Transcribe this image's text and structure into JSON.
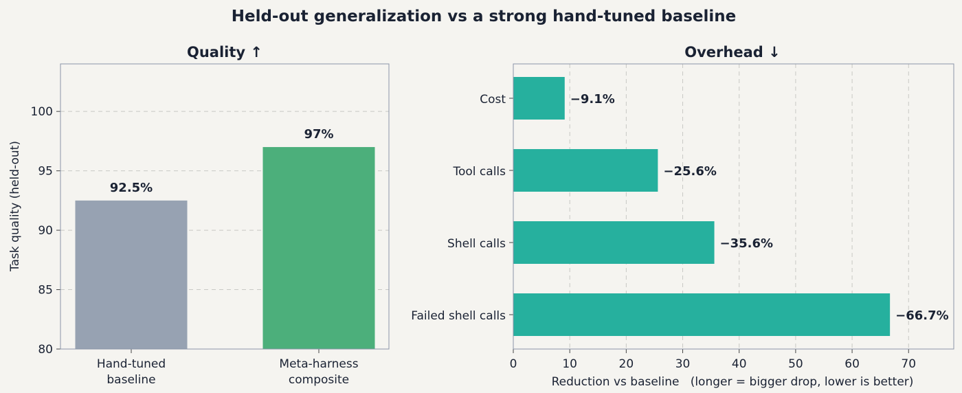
{
  "title": "Held-out generalization vs a strong hand-tuned baseline",
  "colors": {
    "baseline": "#97a2b2",
    "composite": "#4caf7b",
    "overhead": "#26b09e"
  },
  "chart_data": [
    {
      "type": "bar",
      "title": "Quality ↑",
      "categories": [
        [
          "Hand-tuned",
          "baseline"
        ],
        [
          "Meta-harness",
          "composite"
        ]
      ],
      "values": [
        92.5,
        97
      ],
      "value_labels": [
        "92.5%",
        "97%"
      ],
      "ylabel": "Task quality (held-out)",
      "ylim": [
        80,
        104
      ],
      "yticks": [
        80,
        85,
        90,
        95,
        100
      ],
      "grid": true
    },
    {
      "type": "bar",
      "orientation": "horizontal",
      "title": "Overhead ↓",
      "categories": [
        "Cost",
        "Tool calls",
        "Shell calls",
        "Failed shell calls"
      ],
      "values": [
        9.1,
        25.6,
        35.6,
        66.7
      ],
      "value_labels": [
        "−9.1%",
        "−25.6%",
        "−35.6%",
        "−66.7%"
      ],
      "xlabel": "Reduction vs baseline   (longer = bigger drop, lower is better)",
      "xlim": [
        0,
        78
      ],
      "xticks": [
        0,
        10,
        20,
        30,
        40,
        50,
        60,
        70
      ],
      "grid": true
    }
  ]
}
